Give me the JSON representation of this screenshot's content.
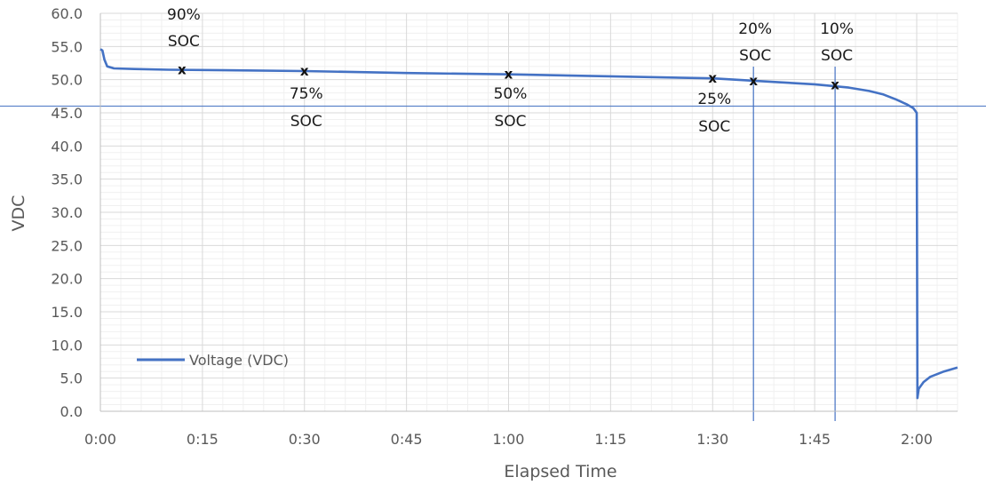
{
  "chart_data": {
    "type": "line",
    "xlabel": "Elapsed Time",
    "ylabel": "VDC",
    "x_unit": "minutes",
    "xlim": [
      0,
      126
    ],
    "ylim": [
      0,
      60
    ],
    "x_ticks": [
      {
        "v": 0,
        "label": "0:00"
      },
      {
        "v": 15,
        "label": "0:15"
      },
      {
        "v": 30,
        "label": "0:30"
      },
      {
        "v": 45,
        "label": "0:45"
      },
      {
        "v": 60,
        "label": "1:00"
      },
      {
        "v": 75,
        "label": "1:15"
      },
      {
        "v": 90,
        "label": "1:30"
      },
      {
        "v": 105,
        "label": "1:45"
      },
      {
        "v": 120,
        "label": "2:00"
      }
    ],
    "y_ticks": [
      {
        "v": 0,
        "label": "0.0"
      },
      {
        "v": 5,
        "label": "5.0"
      },
      {
        "v": 10,
        "label": "10.0"
      },
      {
        "v": 15,
        "label": "15.0"
      },
      {
        "v": 20,
        "label": "20.0"
      },
      {
        "v": 25,
        "label": "25.0"
      },
      {
        "v": 30,
        "label": "30.0"
      },
      {
        "v": 35,
        "label": "35.0"
      },
      {
        "v": 40,
        "label": "40.0"
      },
      {
        "v": 45,
        "label": "45.0"
      },
      {
        "v": 50,
        "label": "50.0"
      },
      {
        "v": 55,
        "label": "55.0"
      },
      {
        "v": 60,
        "label": "60.0"
      }
    ],
    "grid": true,
    "legend_position": "bottom-left",
    "series": [
      {
        "name": "Voltage (VDC)",
        "color": "#4472c4",
        "x": [
          0,
          0.3,
          0.6,
          1,
          2,
          5,
          10,
          20,
          30,
          45,
          60,
          75,
          90,
          95,
          100,
          105,
          110,
          113,
          115,
          117,
          118.5,
          119.5,
          120,
          120.1,
          120.3,
          121,
          122,
          124,
          126
        ],
        "y": [
          54.6,
          54.4,
          53.0,
          52.0,
          51.7,
          51.6,
          51.5,
          51.4,
          51.3,
          51.0,
          50.8,
          50.5,
          50.2,
          49.9,
          49.6,
          49.3,
          48.8,
          48.3,
          47.8,
          47.0,
          46.3,
          45.7,
          45.0,
          2.0,
          3.4,
          4.4,
          5.2,
          6.0,
          6.6
        ]
      }
    ],
    "reference_lines": [
      {
        "orientation": "horizontal",
        "value": 46,
        "color": "#4472c4"
      },
      {
        "orientation": "vertical",
        "value": 96,
        "color": "#4472c4"
      },
      {
        "orientation": "vertical",
        "value": 108,
        "color": "#4472c4"
      }
    ],
    "point_markers": [
      {
        "label": "x",
        "x": 12,
        "y": 51.5
      },
      {
        "label": "x",
        "x": 30,
        "y": 51.3
      },
      {
        "label": "x",
        "x": 60,
        "y": 50.8
      },
      {
        "label": "x",
        "x": 90,
        "y": 50.2
      },
      {
        "label": "x",
        "x": 96,
        "y": 49.8
      },
      {
        "label": "x",
        "x": 108,
        "y": 49.2
      }
    ],
    "annotations": [
      {
        "line1": "90%",
        "line2": "SOC",
        "placement": "above",
        "x": 12
      },
      {
        "line1": "75%",
        "line2": "SOC",
        "placement": "below",
        "x": 30
      },
      {
        "line1": "50%",
        "line2": "SOC",
        "placement": "below",
        "x": 60
      },
      {
        "line1": "25%",
        "line2": "SOC",
        "placement": "below",
        "x": 90
      },
      {
        "line1": "20%",
        "line2": "SOC",
        "placement": "above",
        "x": 96
      },
      {
        "line1": "10%",
        "line2": "SOC",
        "placement": "above",
        "x": 108
      }
    ]
  }
}
